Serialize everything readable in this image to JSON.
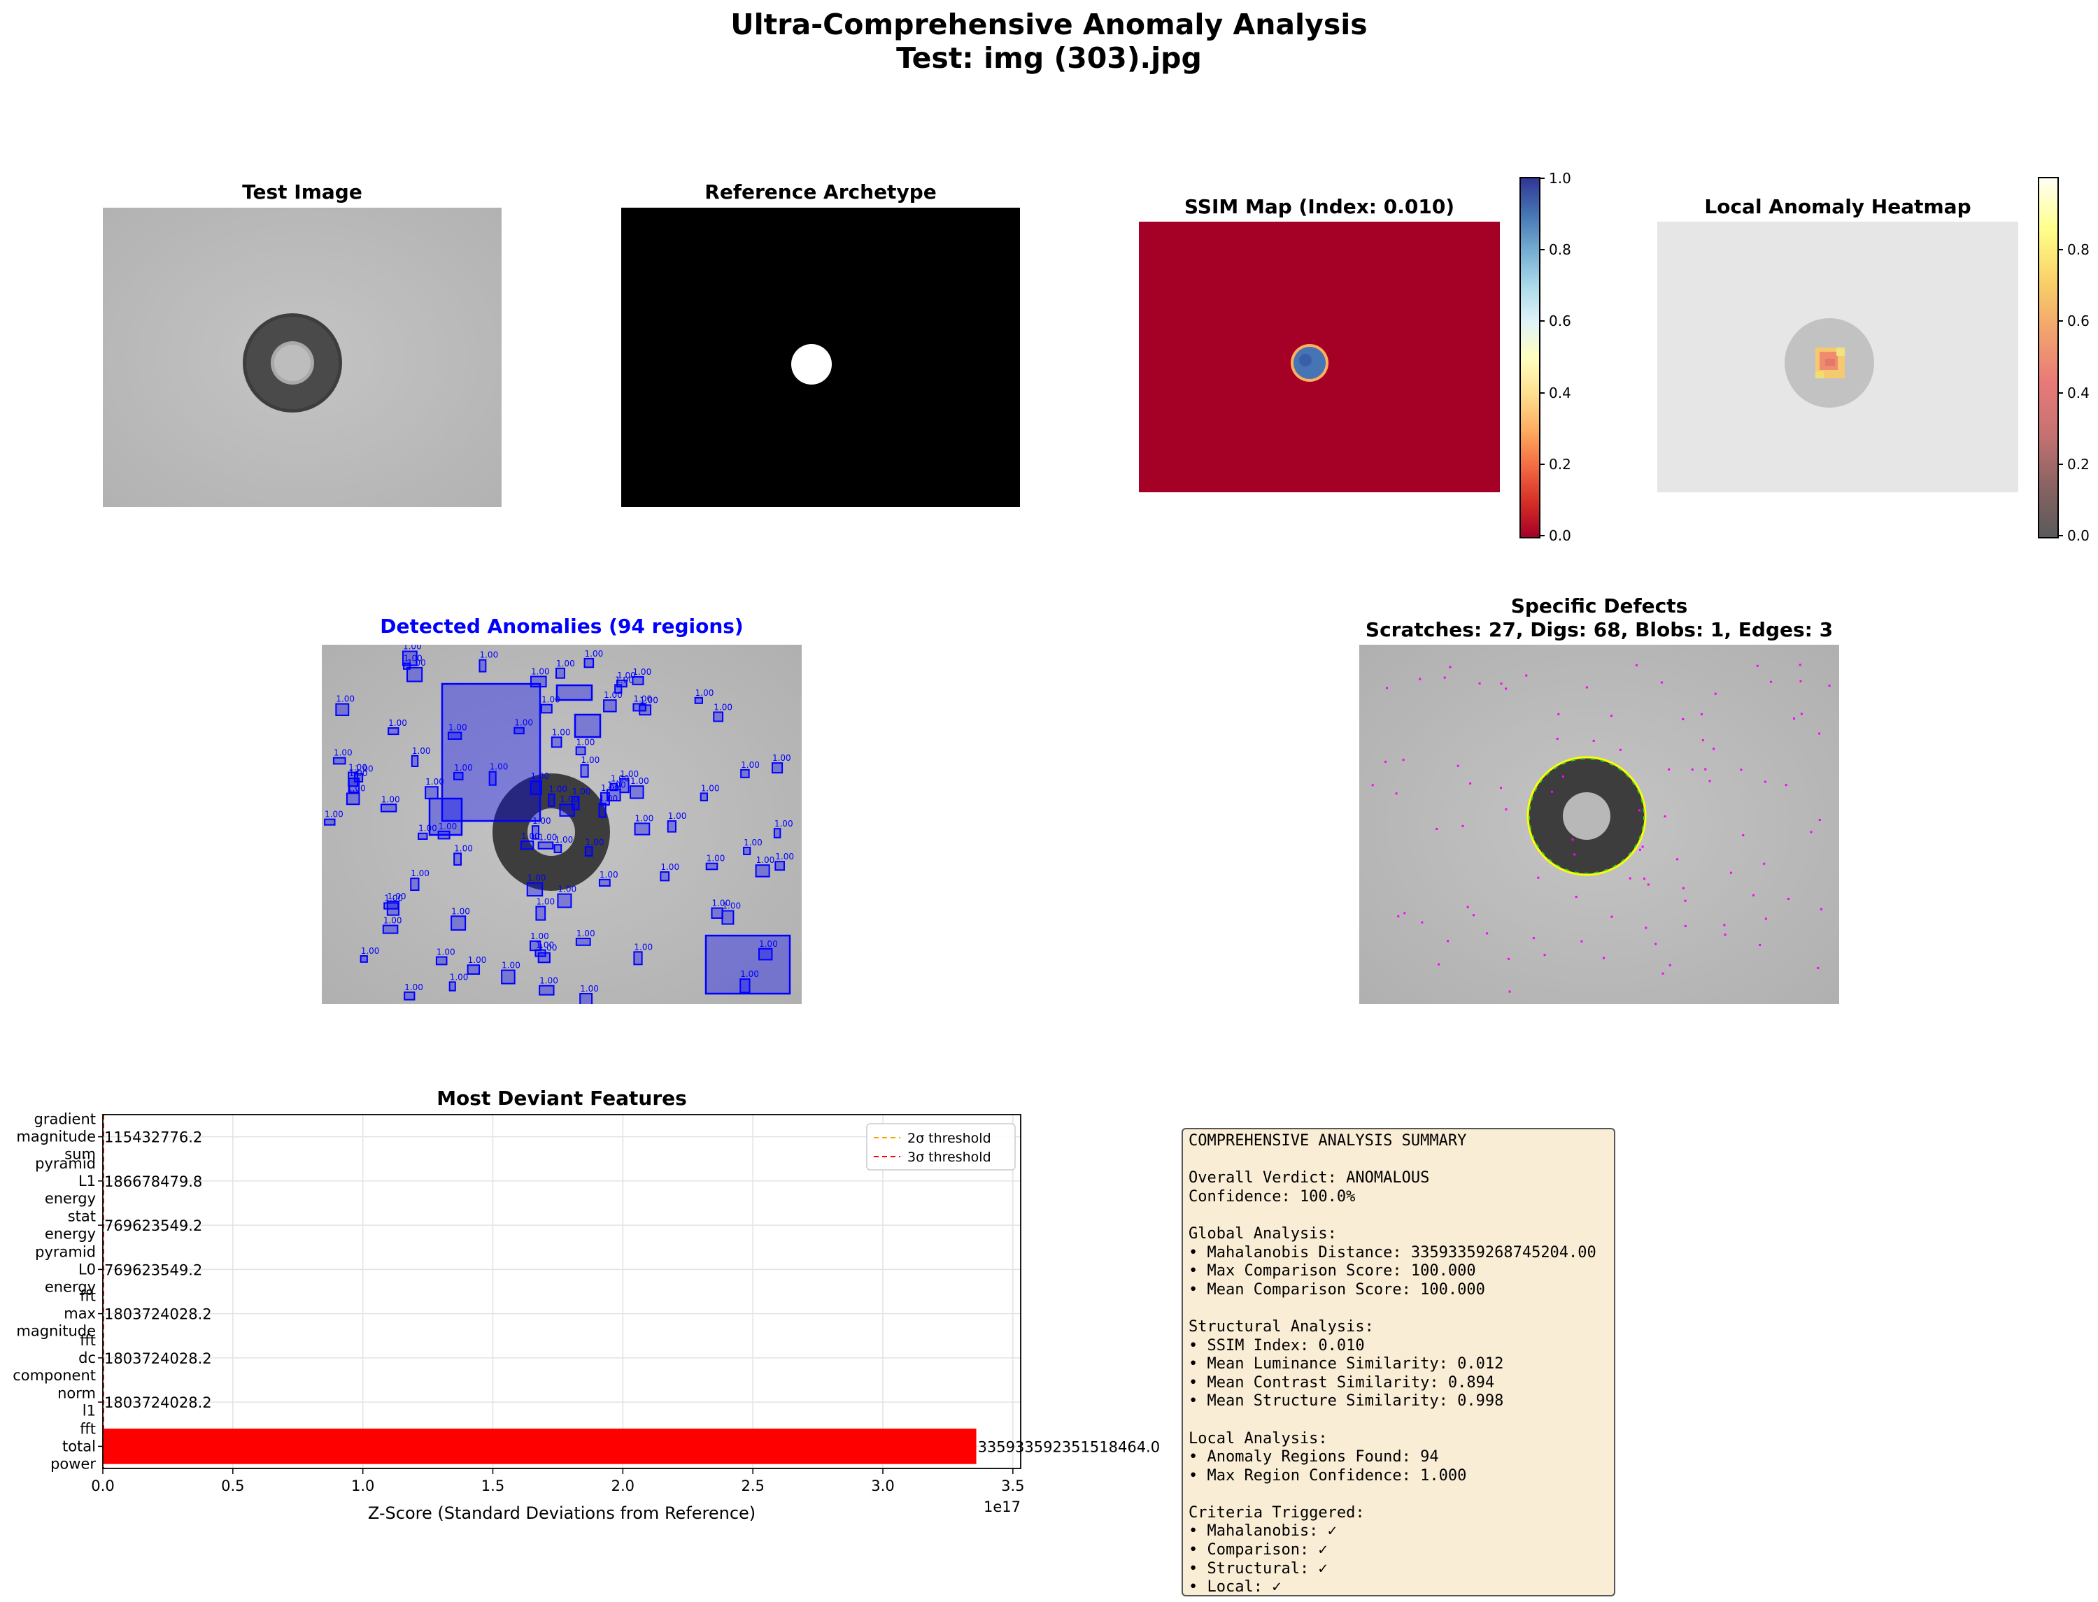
{
  "suptitle": {
    "line1": "Ultra-Comprehensive Anomaly Analysis",
    "line2": "Test: img (303).jpg"
  },
  "panels": {
    "test_image": {
      "title": "Test Image"
    },
    "reference": {
      "title": "Reference Archetype"
    },
    "ssim_map": {
      "title": "SSIM Map (Index: 0.010)",
      "colorbar_ticks": [
        "1.0",
        "0.8",
        "0.6",
        "0.4",
        "0.2",
        "0.0"
      ]
    },
    "heatmap": {
      "title": "Local Anomaly Heatmap",
      "colorbar_ticks": [
        "0.8",
        "0.6",
        "0.4",
        "0.2",
        "0.0"
      ]
    },
    "detected": {
      "title": "Detected Anomalies (94 regions)",
      "title_color": "#0000ff",
      "box_label": "1.00",
      "region_count": 94,
      "max_confidence": 1.0
    },
    "defects": {
      "title_line1": "Specific Defects",
      "title_line2": "Scratches: 27, Digs: 68, Blobs: 1, Edges: 3",
      "scratches": 27,
      "digs": 68,
      "blobs": 1,
      "edges": 3
    }
  },
  "colors": {
    "bar_color": "#ff0000",
    "threshold_2sigma": "#ffa500",
    "threshold_3sigma": "#ff0000",
    "detect_box": "#0000ff",
    "defect_marker": "#ff00ff",
    "edge_ring": "#ffff00"
  },
  "chart_data": {
    "type": "bar",
    "orientation": "horizontal",
    "title": "Most Deviant Features",
    "xlabel": "Z-Score (Standard Deviations from Reference)",
    "ylabel": "",
    "x_multiplier_label": "1e17",
    "xlim": [
      0,
      3.53e+17
    ],
    "xticks": [
      0,
      5e+16,
      1e+17,
      1.5e+17,
      2e+17,
      2.5e+17,
      3e+17,
      3.5e+17
    ],
    "xtick_labels": [
      "0.0",
      "0.5",
      "1.0",
      "1.5",
      "2.0",
      "2.5",
      "3.0",
      "3.5"
    ],
    "grid": true,
    "legend_position": "top-right",
    "legend": [
      {
        "label": "2σ threshold",
        "style": "dashed",
        "color": "#ffa500",
        "x": 2
      },
      {
        "label": "3σ threshold",
        "style": "dashed",
        "color": "#ff0000",
        "x": 3
      }
    ],
    "categories": [
      [
        "gradient",
        "magnitude",
        "sum"
      ],
      [
        "pyramid",
        "L1",
        "energy"
      ],
      [
        "stat",
        "energy"
      ],
      [
        "pyramid",
        "L0",
        "energy"
      ],
      [
        "fft",
        "max",
        "magnitude"
      ],
      [
        "fft",
        "dc",
        "component"
      ],
      [
        "norm",
        "l1"
      ],
      [
        "fft",
        "total",
        "power"
      ]
    ],
    "values": [
      115432776.2,
      186678479.8,
      769623549.2,
      769623549.2,
      1803724028.2,
      1803724028.2,
      1803724028.2,
      3.3593359235151846e+17
    ],
    "value_labels": [
      "115432776.2",
      "186678479.8",
      "769623549.2",
      "769623549.2",
      "1803724028.2",
      "1803724028.2",
      "1803724028.2",
      "335933592351518464.0"
    ]
  },
  "summary": {
    "lines": [
      "COMPREHENSIVE ANALYSIS SUMMARY",
      "",
      "Overall Verdict: ANOMALOUS",
      "Confidence: 100.0%",
      "",
      "Global Analysis:",
      "• Mahalanobis Distance: 33593359268745204.00",
      "• Max Comparison Score: 100.000",
      "• Mean Comparison Score: 100.000",
      "",
      "Structural Analysis:",
      "• SSIM Index: 0.010",
      "• Mean Luminance Similarity: 0.012",
      "• Mean Contrast Similarity: 0.894",
      "• Mean Structure Similarity: 0.998",
      "",
      "Local Analysis:",
      "• Anomaly Regions Found: 94",
      "• Max Region Confidence: 1.000",
      "",
      "Criteria Triggered:",
      "• Mahalanobis: ✓",
      "• Comparison: ✓",
      "• Structural: ✓",
      "• Local: ✓"
    ]
  }
}
